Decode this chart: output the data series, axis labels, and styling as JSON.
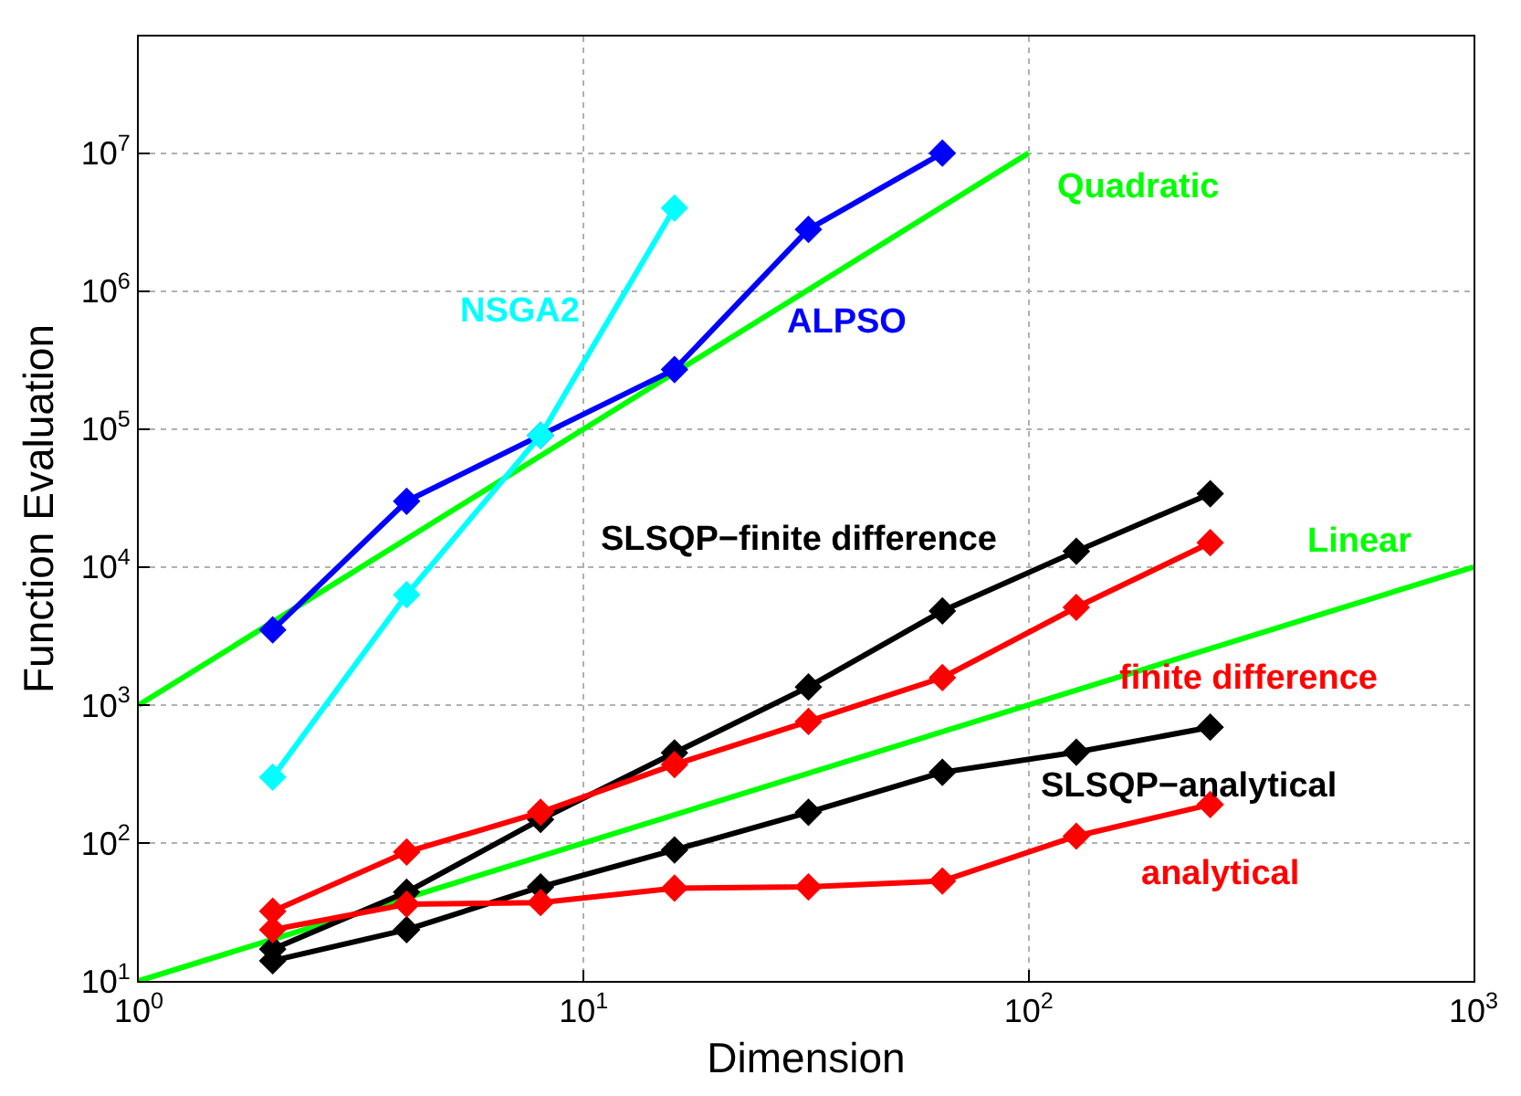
{
  "chart_data": {
    "type": "line",
    "xlabel": "Dimension",
    "ylabel": "Function Evaluation",
    "log": "xy",
    "grid": true,
    "marker": "diamond",
    "line_style": "solid",
    "xlim": [
      1,
      1000
    ],
    "ylim": [
      10,
      70000000
    ],
    "xticks": [
      {
        "value": 1,
        "label": "10$^{0}$"
      },
      {
        "value": 10,
        "label": "10$^{1}$"
      },
      {
        "value": 100,
        "label": "10$^{2}$"
      },
      {
        "value": 1000,
        "label": "10$^{3}$"
      }
    ],
    "yticks": [
      {
        "value": 10,
        "label": "10$^{1}$"
      },
      {
        "value": 100,
        "label": "10$^{2}$"
      },
      {
        "value": 1000,
        "label": "10$^{3}$"
      },
      {
        "value": 10000,
        "label": "10$^{4}$"
      },
      {
        "value": 100000,
        "label": "10$^{5}$"
      },
      {
        "value": 1000000,
        "label": "10$^{6}$"
      },
      {
        "value": 10000000,
        "label": "10$^{7}$"
      }
    ],
    "series": [
      {
        "name": "Quadratic",
        "color": "#00ff00",
        "marker": "none",
        "x": [
          1,
          100
        ],
        "values": [
          1000,
          10000000
        ]
      },
      {
        "name": "Linear",
        "color": "#00ff00",
        "marker": "none",
        "x": [
          1,
          1000
        ],
        "values": [
          10,
          10000
        ]
      },
      {
        "name": "ALPSO",
        "color": "#0000ff",
        "x": [
          2,
          4,
          8,
          16,
          32,
          64
        ],
        "values": [
          3500,
          30000,
          90000,
          270000,
          2800000,
          10000000
        ]
      },
      {
        "name": "NSGA2",
        "color": "#00ffff",
        "x": [
          2,
          4,
          8,
          16
        ],
        "values": [
          300,
          6300,
          90000,
          4000000
        ]
      },
      {
        "name": "SLSQP−finite difference",
        "color": "#000000",
        "x": [
          2,
          4,
          8,
          16,
          32,
          64,
          128,
          256
        ],
        "values": [
          17,
          44,
          148,
          450,
          1350,
          4800,
          13000,
          34000
        ]
      },
      {
        "name": "finite difference",
        "color": "#ff0000",
        "x": [
          2,
          4,
          8,
          16,
          32,
          64,
          128,
          256
        ],
        "values": [
          32,
          86,
          167,
          370,
          760,
          1580,
          5100,
          15000
        ]
      },
      {
        "name": "SLSQP−analytical",
        "color": "#000000",
        "x": [
          2,
          4,
          8,
          16,
          32,
          64,
          128,
          256
        ],
        "values": [
          14,
          23.5,
          48,
          89,
          167,
          325,
          455,
          690
        ]
      },
      {
        "name": "analytical",
        "color": "#ff0000",
        "x": [
          2,
          4,
          8,
          16,
          32,
          64,
          128,
          256
        ],
        "values": [
          23.5,
          36,
          37,
          47,
          48,
          53,
          112,
          190
        ]
      }
    ]
  }
}
